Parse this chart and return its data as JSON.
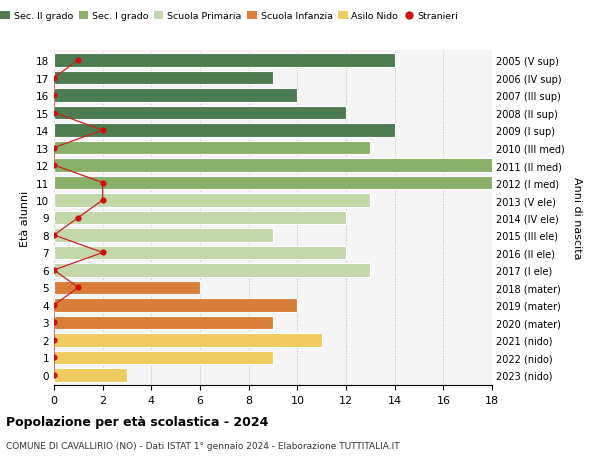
{
  "ages": [
    18,
    17,
    16,
    15,
    14,
    13,
    12,
    11,
    10,
    9,
    8,
    7,
    6,
    5,
    4,
    3,
    2,
    1,
    0
  ],
  "years": [
    "2005 (V sup)",
    "2006 (IV sup)",
    "2007 (III sup)",
    "2008 (II sup)",
    "2009 (I sup)",
    "2010 (III med)",
    "2011 (II med)",
    "2012 (I med)",
    "2013 (V ele)",
    "2014 (IV ele)",
    "2015 (III ele)",
    "2016 (II ele)",
    "2017 (I ele)",
    "2018 (mater)",
    "2019 (mater)",
    "2020 (mater)",
    "2021 (nido)",
    "2022 (nido)",
    "2023 (nido)"
  ],
  "bar_values": [
    14,
    9,
    10,
    12,
    14,
    13,
    19,
    18,
    13,
    12,
    9,
    12,
    13,
    6,
    10,
    9,
    11,
    9,
    3
  ],
  "bar_colors": [
    "#4d7c50",
    "#4d7c50",
    "#4d7c50",
    "#4d7c50",
    "#4d7c50",
    "#88b068",
    "#88b068",
    "#88b068",
    "#c2d8a8",
    "#c2d8a8",
    "#c2d8a8",
    "#c2d8a8",
    "#c2d8a8",
    "#d97e3a",
    "#d97e3a",
    "#d97e3a",
    "#f0cc60",
    "#f0cc60",
    "#f0cc60"
  ],
  "stranieri_x": [
    1,
    0,
    0,
    0,
    2,
    0,
    0,
    2,
    2,
    1,
    0,
    2,
    0,
    1,
    0,
    0,
    0,
    0,
    0
  ],
  "legend_labels": [
    "Sec. II grado",
    "Sec. I grado",
    "Scuola Primaria",
    "Scuola Infanzia",
    "Asilo Nido",
    "Stranieri"
  ],
  "legend_colors": [
    "#4d7c50",
    "#88b068",
    "#c2d8a8",
    "#d97e3a",
    "#f0cc60",
    "#cc1111"
  ],
  "ylabel_text": "Età alunni",
  "ylabel2_text": "Anni di nascita",
  "title_bold": "Popolazione per età scolastica - 2024",
  "subtitle": "COMUNE DI CAVALLIRIO (NO) - Dati ISTAT 1° gennaio 2024 - Elaborazione TUTTITALIA.IT",
  "xlim": [
    0,
    18
  ],
  "xticks": [
    0,
    2,
    4,
    6,
    8,
    10,
    12,
    14,
    16,
    18
  ],
  "bg_color": "#ffffff",
  "bar_height": 0.78,
  "stranieri_color": "#cc1111",
  "stranieri_line_color": "#cc2222"
}
